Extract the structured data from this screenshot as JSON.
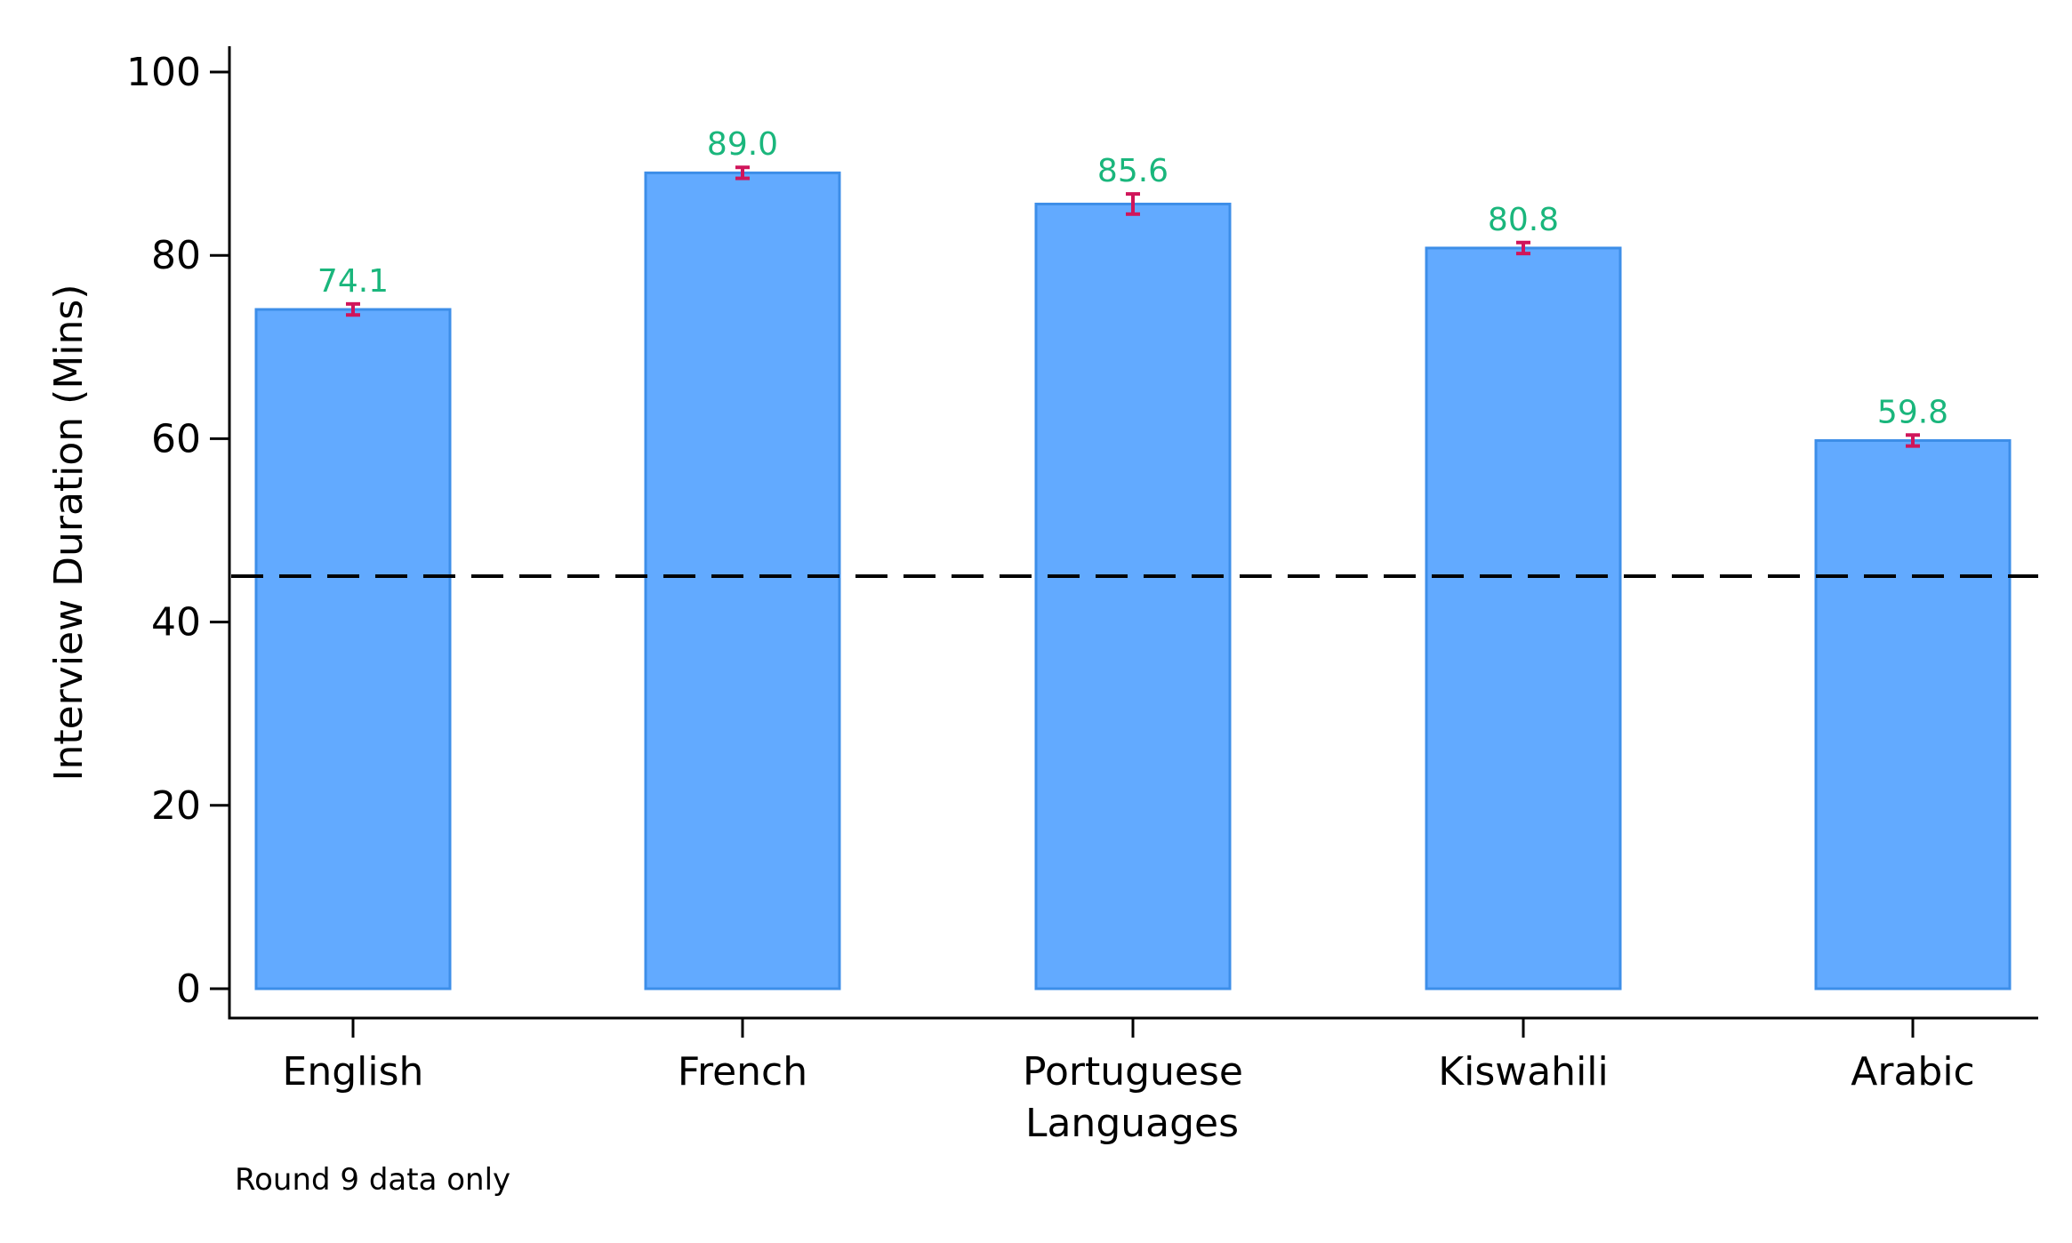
{
  "chart_data": {
    "type": "bar",
    "categories": [
      "English",
      "French",
      "Portuguese",
      "Kiswahili",
      "Arabic"
    ],
    "values": [
      74.1,
      89.0,
      85.6,
      80.8,
      59.8
    ],
    "value_labels": [
      "74.1",
      "89.0",
      "85.6",
      "80.8",
      "59.8"
    ],
    "error_bars": [
      {
        "low": 73.5,
        "high": 74.7
      },
      {
        "low": 88.4,
        "high": 89.6
      },
      {
        "low": 84.5,
        "high": 86.7
      },
      {
        "low": 80.2,
        "high": 81.4
      },
      {
        "low": 59.2,
        "high": 60.4
      }
    ],
    "reference_line": 45,
    "xlabel": "Languages",
    "ylabel": "Interview Duration (Mins)",
    "ylim": [
      0,
      100
    ],
    "yticks": [
      0,
      20,
      40,
      60,
      80,
      100
    ],
    "ytick_labels": [
      "0",
      "20",
      "40",
      "60",
      "80",
      "100"
    ],
    "grid": false,
    "legend": "none",
    "note": "Round 9 data only",
    "colors": {
      "bar_fill": "#62aaff",
      "bar_stroke": "#3d8ee8",
      "value_label": "#1ab67c",
      "error_bar": "#d0155a",
      "reference_line": "#000000"
    }
  }
}
